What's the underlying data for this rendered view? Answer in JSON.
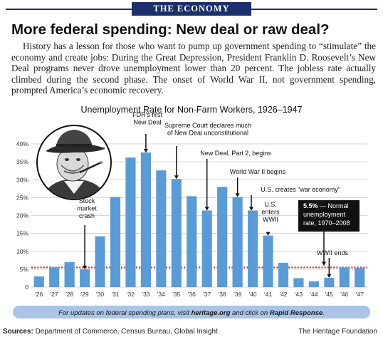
{
  "banner": "THE ECONOMY",
  "headline": "More federal spending: New deal or raw deal?",
  "lede": "History has a lesson for those who want to pump up government spending to “stimulate” the economy and create jobs: During the Great Depression, President Franklin D. Roosevelt’s New Deal programs never drove unemployment lower than 20 percent. The jobless rate actually climbed during the second phase. The onset of World War II, not government spending, prompted America’s economic recovery.",
  "chart_data": {
    "type": "bar",
    "title": "Unemployment Rate for Non-Farm Workers, 1926–1947",
    "categories": [
      "'26",
      "'27",
      "'28",
      "'29",
      "'30",
      "'31",
      "'32",
      "'33",
      "'34",
      "'35",
      "'36",
      "'37",
      "'38",
      "'39",
      "'40",
      "'41",
      "'42",
      "'43",
      "'44",
      "'45",
      "'46",
      "'47"
    ],
    "values": [
      3,
      5.5,
      7,
      5,
      14.2,
      25.2,
      36.2,
      37.6,
      32.6,
      30.2,
      25.4,
      21.4,
      28,
      25.2,
      21.4,
      14.4,
      6.8,
      2.5,
      1.6,
      2.6,
      5.5,
      5.3
    ],
    "yticks": [
      "0",
      "5%",
      "10%",
      "15%",
      "20%",
      "25%",
      "30%",
      "35%",
      "40%"
    ],
    "ylim": [
      0,
      40
    ],
    "bar_color": "#5b9bd5",
    "reference_line": {
      "value": 5.5,
      "color": "#c0392b"
    },
    "annotations": [
      {
        "category": "'29",
        "lines": [
          "Stock",
          "market",
          "crash"
        ]
      },
      {
        "category": "'33",
        "lines": [
          "FDR’s first",
          "New Deal"
        ]
      },
      {
        "category": "'35",
        "lines": [
          "Supreme Court declares much",
          "of New Deal unconstitutional"
        ]
      },
      {
        "category": "'37",
        "lines": [
          "New Deal, Part 2, begins"
        ]
      },
      {
        "category": "'39",
        "lines": [
          "World War II begins"
        ]
      },
      {
        "category": "'40",
        "lines": [
          "U.S. creates “war economy”"
        ]
      },
      {
        "category": "'41",
        "lines": [
          "U.S.",
          "enters",
          "WWII"
        ]
      },
      {
        "category": "'45",
        "lines": [
          "WWII ends"
        ]
      }
    ],
    "normal_note": {
      "bold": "5.5%",
      "rest": [
        "— Normal",
        "unemployment",
        "rate, 1970–2008"
      ]
    }
  },
  "chart_footer": {
    "prefix": "For updates on federal spending plans, visit ",
    "link": "heritage.org",
    "middle": " and click on ",
    "cta": "Rapid Response",
    "suffix": "."
  },
  "footer": {
    "sources_label": "Sources:",
    "sources_text": " Department of Commerce, Census Bureau, Global Insight",
    "publisher": "The Heritage Foundation"
  }
}
